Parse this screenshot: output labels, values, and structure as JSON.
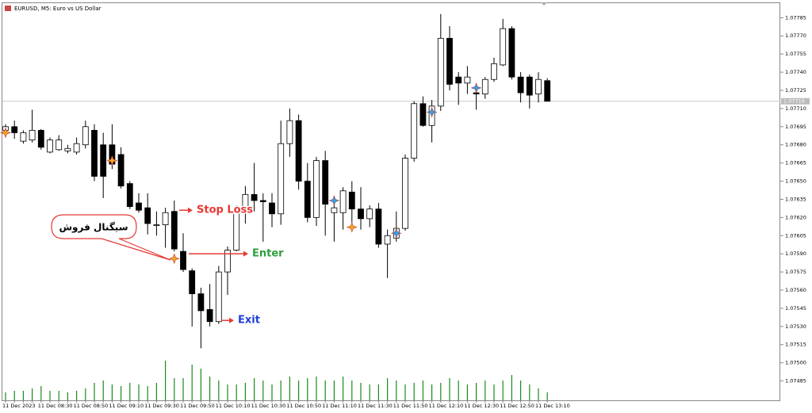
{
  "chart_data": {
    "type": "candlestick",
    "title": "EURUSD, M5:  Euro vs US Dollar",
    "categories": [
      "11 Dec 2023",
      null,
      null,
      null,
      "11 Dec 08:30",
      null,
      null,
      null,
      "11 Dec 08:50",
      null,
      null,
      null,
      "11 Dec 09:10",
      null,
      null,
      null,
      "11 Dec 09:30",
      null,
      null,
      null,
      "11 Dec 09:50",
      null,
      null,
      null,
      "11 Dec 10:10",
      null,
      null,
      null,
      "11 Dec 10:30",
      null,
      null,
      null,
      "11 Dec 10:50",
      null,
      null,
      null,
      "11 Dec 11:10",
      null,
      null,
      null,
      "11 Dec 11:30",
      null,
      null,
      null,
      "11 Dec 11:50",
      null,
      null,
      null,
      "11 Dec 12:10",
      null,
      null,
      null,
      "11 Dec 12:30",
      null,
      null,
      null,
      "11 Dec 12:50",
      null,
      null,
      null,
      "11 Dec 13:10",
      null
    ],
    "open": [
      1.07692,
      1.07695,
      1.07683,
      1.07684,
      1.07692,
      1.07674,
      1.07676,
      1.07675,
      1.07674,
      1.0768,
      1.07692,
      1.0768,
      1.0768,
      1.07672,
      1.07648,
      1.07632,
      1.07628,
      1.07614,
      1.07614,
      1.07625,
      1.07592,
      1.07576,
      1.07557,
      1.07544,
      1.07534,
      1.07575,
      1.07593,
      1.07624,
      1.07639,
      1.07634,
      1.07632,
      1.07623,
      1.07681,
      1.077,
      1.0765,
      1.0762,
      1.07667,
      1.07624,
      1.07624,
      1.07641,
      1.07627,
      1.07619,
      1.07627,
      1.07598,
      1.07603,
      1.07611,
      1.07669,
      1.07714,
      1.07696,
      1.07712,
      1.07768,
      1.07736,
      1.07731,
      1.07723,
      1.07722,
      1.07734,
      1.07746,
      1.07776,
      1.07736,
      1.07736,
      1.07722,
      1.07733
    ],
    "high": [
      1.07697,
      1.077,
      1.07692,
      1.07709,
      1.07693,
      1.07686,
      1.07688,
      1.0768,
      1.07686,
      1.077,
      1.07697,
      1.0769,
      1.07697,
      1.07678,
      1.0765,
      1.0764,
      1.0764,
      1.07625,
      1.07628,
      1.07634,
      1.07607,
      1.07578,
      1.07562,
      1.07565,
      1.0758,
      1.07596,
      1.0763,
      1.07646,
      1.07665,
      1.0764,
      1.0764,
      1.077,
      1.0771,
      1.07705,
      1.07665,
      1.0767,
      1.07675,
      1.07635,
      1.07645,
      1.0765,
      1.07645,
      1.0763,
      1.07632,
      1.0761,
      1.07625,
      1.07672,
      1.07716,
      1.0772,
      1.07717,
      1.07788,
      1.07778,
      1.0774,
      1.07745,
      1.0773,
      1.07736,
      1.07752,
      1.07784,
      1.07778,
      1.0774,
      1.07738,
      1.0774,
      1.07735
    ],
    "low": [
      1.07688,
      1.07685,
      1.07681,
      1.07682,
      1.07676,
      1.07673,
      1.07675,
      1.07673,
      1.07672,
      1.07677,
      1.0765,
      1.07636,
      1.0766,
      1.07644,
      1.07627,
      1.07624,
      1.07606,
      1.07605,
      1.07595,
      1.07592,
      1.07575,
      1.0753,
      1.07512,
      1.0753,
      1.07532,
      1.07556,
      1.07592,
      1.07615,
      1.07625,
      1.076,
      1.07612,
      1.07614,
      1.0767,
      1.07643,
      1.07616,
      1.07613,
      1.07605,
      1.076,
      1.0761,
      1.07616,
      1.0761,
      1.07612,
      1.07595,
      1.0757,
      1.076,
      1.07609,
      1.07666,
      1.07695,
      1.07682,
      1.07708,
      1.07725,
      1.07713,
      1.07722,
      1.07709,
      1.07718,
      1.07732,
      1.07745,
      1.07734,
      1.07715,
      1.0771,
      1.07715,
      1.07716
    ],
    "close": [
      1.07695,
      1.0769,
      1.0769,
      1.07692,
      1.07678,
      1.07684,
      1.07684,
      1.07677,
      1.07681,
      1.07695,
      1.07654,
      1.07654,
      1.07664,
      1.07646,
      1.07629,
      1.07626,
      1.07615,
      1.07614,
      1.07624,
      1.07594,
      1.07577,
      1.07557,
      1.07543,
      1.07534,
      1.07575,
      1.07593,
      1.07624,
      1.07639,
      1.07634,
      1.07633,
      1.07623,
      1.07681,
      1.077,
      1.0765,
      1.0762,
      1.07667,
      1.07631,
      1.07628,
      1.07642,
      1.07627,
      1.07619,
      1.07627,
      1.07598,
      1.07605,
      1.07611,
      1.07669,
      1.07714,
      1.07696,
      1.07712,
      1.07768,
      1.0773,
      1.07731,
      1.07736,
      1.07722,
      1.07734,
      1.07747,
      1.07776,
      1.07736,
      1.07723,
      1.07721,
      1.07734,
      1.07716
    ],
    "volumes": [
      10,
      12,
      12,
      15,
      18,
      12,
      12,
      10,
      12,
      15,
      22,
      25,
      20,
      18,
      22,
      20,
      18,
      22,
      50,
      28,
      28,
      45,
      40,
      30,
      25,
      20,
      20,
      22,
      28,
      25,
      20,
      25,
      30,
      25,
      28,
      30,
      25,
      25,
      30,
      25,
      22,
      20,
      20,
      28,
      25,
      20,
      22,
      25,
      20,
      22,
      28,
      25,
      20,
      22,
      25,
      20,
      25,
      32,
      25,
      20,
      15,
      10
    ],
    "volume_color": "#1a8a1a",
    "ylim": [
      1.07469,
      1.07797
    ],
    "yticks": [
      1.07785,
      {
        "value": 1.0777,
        "label": "1.07770"
      },
      1.07755,
      {
        "value": 1.0774,
        "label": "1.07740"
      },
      1.07725,
      {
        "value": 1.0771,
        "label": "1.07710"
      },
      1.07695,
      {
        "value": 1.0768,
        "label": "1.07680"
      },
      1.07665,
      {
        "value": 1.0765,
        "label": "1.07650"
      },
      1.07635,
      {
        "value": 1.0762,
        "label": "1.07620"
      },
      1.07605,
      {
        "value": 1.0759,
        "label": "1.07590"
      },
      1.07575,
      {
        "value": 1.0756,
        "label": "1.07560"
      },
      1.07545,
      {
        "value": 1.0753,
        "label": "1.07530"
      },
      1.07515,
      {
        "value": 1.075,
        "label": "1.07500"
      },
      1.07485
    ],
    "last_price": 1.07716,
    "signals": [
      {
        "index": 0,
        "price": 1.0769,
        "color": "#f5a623"
      },
      {
        "index": 12,
        "price": 1.07667,
        "color": "#f5a623"
      },
      {
        "index": 19,
        "price": 1.07586,
        "color": "#f5a623"
      },
      {
        "index": 39,
        "price": 1.07612,
        "color": "#f5a623"
      },
      {
        "index": 37,
        "price": 1.07634,
        "color": "#29a3f0"
      },
      {
        "index": 44,
        "price": 1.07607,
        "color": "#29a3f0"
      },
      {
        "index": 48,
        "price": 1.07707,
        "color": "#29a3f0"
      },
      {
        "index": 53,
        "price": 1.07727,
        "color": "#29a3f0"
      }
    ],
    "annotations": [
      {
        "text": "Stop Loss",
        "price": 1.07626,
        "color": "#e53935"
      },
      {
        "text": "Enter",
        "price": 1.0759,
        "color": "#2e9e3e"
      },
      {
        "text": "Exit",
        "price": 1.07535,
        "color": "#1f3fd8"
      }
    ],
    "callout": "سیگنال فروش"
  }
}
